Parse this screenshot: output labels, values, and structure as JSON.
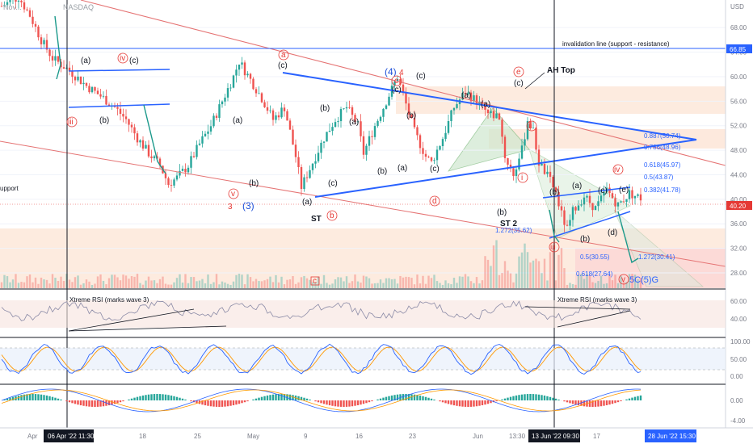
{
  "chart_data": {
    "type": "candlestick",
    "symbol_title": "Nov...",
    "exchange": "NASDAQ",
    "currency": "USD",
    "y_axis_ticks": [
      68.0,
      64.0,
      60.0,
      56.0,
      52.0,
      48.0,
      44.0,
      40.0,
      36.0,
      32.0,
      28.0
    ],
    "ylim": [
      25.5,
      72.5
    ],
    "x_axis_labels": [
      "Apr",
      "06 Apr '22  11:30",
      "18",
      "25",
      "May",
      "9",
      "16",
      "23",
      "Jun",
      "13:30",
      "13 Jun '22  09:30",
      "17",
      "28 Jun '22  15:30"
    ],
    "current_price": "40.20",
    "invalidation_price": "66.85",
    "price_series": {
      "note_points": [
        [
          0,
          71.5
        ],
        [
          6,
          73
        ],
        [
          10,
          70
        ],
        [
          14,
          66
        ],
        [
          18,
          63
        ],
        [
          24,
          61
        ],
        [
          30,
          58.5
        ],
        [
          36,
          56.5
        ],
        [
          40,
          55
        ],
        [
          44,
          53
        ],
        [
          48,
          50
        ],
        [
          52,
          47.5
        ],
        [
          56,
          45.5
        ],
        [
          59,
          42.5
        ],
        [
          62,
          43.5
        ],
        [
          66,
          45.5
        ],
        [
          70,
          49
        ],
        [
          74,
          52
        ],
        [
          78,
          56
        ],
        [
          82,
          60
        ],
        [
          84,
          62.5
        ],
        [
          88,
          59.5
        ],
        [
          92,
          56.5
        ],
        [
          96,
          53
        ],
        [
          100,
          55
        ],
        [
          104,
          47
        ],
        [
          106,
          42
        ],
        [
          110,
          46
        ],
        [
          114,
          50
        ],
        [
          118,
          53
        ],
        [
          122,
          55
        ],
        [
          126,
          52
        ],
        [
          128,
          47.5
        ],
        [
          132,
          52
        ],
        [
          136,
          56
        ],
        [
          140,
          60
        ],
        [
          142,
          57
        ],
        [
          146,
          51
        ],
        [
          150,
          47
        ],
        [
          152,
          46
        ],
        [
          156,
          50
        ],
        [
          160,
          55
        ],
        [
          164,
          57.5
        ],
        [
          168,
          56
        ],
        [
          172,
          54
        ],
        [
          176,
          53.5
        ],
        [
          178,
          47
        ],
        [
          181,
          44
        ],
        [
          184,
          48
        ],
        [
          186,
          53
        ],
        [
          188,
          51
        ],
        [
          190,
          46
        ],
        [
          194,
          43
        ],
        [
          196,
          41
        ],
        [
          198,
          37.5
        ],
        [
          200,
          35
        ],
        [
          202,
          38
        ],
        [
          206,
          40.5
        ],
        [
          210,
          38.5
        ],
        [
          214,
          41.5
        ],
        [
          218,
          39
        ],
        [
          222,
          41
        ],
        [
          226,
          40.2
        ]
      ]
    },
    "indicator_labels": [
      "Xtreme RSI (marks wave 3)",
      "Xtreme RSI (marks wave 3)"
    ],
    "rsi_axis_ticks": [
      "60.00",
      "40.00"
    ],
    "stoch_axis_ticks": [
      "100.00",
      "50.00",
      "0.00"
    ],
    "macd_axis_ticks": [
      "0.00",
      "-4.00"
    ],
    "fib_levels": [
      {
        "label": "0.887(50.74)",
        "value": 50.74
      },
      {
        "label": "0.786(48.96)",
        "value": 48.96
      },
      {
        "label": "0.618(45.97)",
        "value": 45.97
      },
      {
        "label": "0.5(43.87)",
        "value": 43.87
      },
      {
        "label": "0.382(41.78)",
        "value": 41.78
      },
      {
        "label": "1.272(35.62)",
        "value": 35.62
      },
      {
        "label": "0.5(30.55)",
        "value": 30.55
      },
      {
        "label": "1.272(30.41)",
        "value": 30.41
      },
      {
        "label": "0.618(27.64)",
        "value": 27.64
      }
    ],
    "annotations": {
      "invalidation_line": "invalidation line (support - resistance)",
      "ah_top": "AH Top",
      "st": "ST",
      "st2": "ST 2",
      "support": "upport",
      "target": "5C(5)G",
      "waves": [
        "(a)",
        "iv",
        "(c)",
        "iii",
        "(b)",
        "a",
        "(c)",
        "(b)",
        "(a)",
        "(b)",
        "3",
        "(3)",
        "v",
        "(a)",
        "(c)",
        "b",
        "(a)",
        "(b)",
        "(a)",
        "(4)",
        "4",
        "c",
        "(c)",
        "(b)",
        "(a)",
        "(c)",
        "(b)",
        "d",
        "(a)",
        "e",
        "(c)",
        "ii",
        "i",
        "(b)",
        "(a)",
        "(c)",
        "(e)",
        "iv",
        "(d)",
        "(b)",
        "iii",
        "c",
        "v",
        "(c)"
      ]
    },
    "grid": true
  },
  "colors": {
    "candle_up": "#26a69a",
    "candle_down": "#ef5350",
    "channel": "#2962ff",
    "resistance": "#e57373",
    "zone_fill": "#fde2d0",
    "triangle_fill": "#cfe8cf",
    "arrow": "#1b998b",
    "rsi_line": "#8a8aa6",
    "stoch_k": "#2962ff",
    "stoch_d": "#ff9800"
  }
}
